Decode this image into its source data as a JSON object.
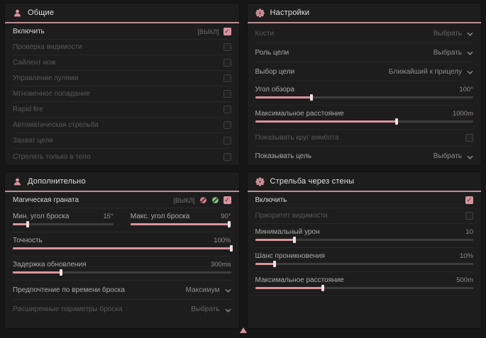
{
  "colors": {
    "accent": "#d8949e",
    "green": "#7fc47d",
    "panel": "#1d1d1d",
    "page": "#161616",
    "header_underline": "#bb8f96"
  },
  "general": {
    "title": "Общие",
    "rows": [
      {
        "label": "Включить",
        "hotkey": "[ВЫКЛ]",
        "checked": true
      },
      {
        "label": "Проверка видимости",
        "checked": false
      },
      {
        "label": "Сайлент нож",
        "checked": false
      },
      {
        "label": "Управление пулями",
        "checked": false
      },
      {
        "label": "Мгновенное попадание",
        "checked": false
      },
      {
        "label": "Rapid fire",
        "checked": false
      },
      {
        "label": "Автоматическая стрельба",
        "checked": false
      },
      {
        "label": "Захват цели",
        "checked": false
      },
      {
        "label": "Стрелять только в тело",
        "checked": false
      }
    ]
  },
  "settings": {
    "title": "Настройки",
    "bones": {
      "label": "Кости",
      "value": "Выбрать"
    },
    "target_role": {
      "label": "Роль цели",
      "value": "Выбрать"
    },
    "target_select": {
      "label": "Выбор цели",
      "value": "Ближайший к прицелу"
    },
    "fov": {
      "label": "Угол обзора",
      "value": "100°",
      "fill": 26
    },
    "max_distance": {
      "label": "Максимальное расстояние",
      "value": "1000m",
      "fill": 65
    },
    "show_circle": {
      "label": "Показывать круг аимбота",
      "checked": false
    },
    "show_target": {
      "label": "Показывать цель",
      "value": "Выбрать"
    }
  },
  "additional": {
    "title": "Дополнительно",
    "magic_grenade": {
      "label": "Магическая граната",
      "hotkey": "[ВЫКЛ]",
      "checked": true
    },
    "min_angle": {
      "label": "Мин. угол броска",
      "value": "15°",
      "fill": 15
    },
    "max_angle": {
      "label": "Макс. угол броска",
      "value": "90°",
      "fill": 98
    },
    "accuracy": {
      "label": "Точность",
      "value": "100%",
      "fill": 100
    },
    "update_delay": {
      "label": "Задержка обновления",
      "value": "300ms",
      "fill": 22
    },
    "throw_time": {
      "label": "Предпочтение по времени броска",
      "value": "Максимум"
    },
    "advanced": {
      "label": "Расширенные параметры броска",
      "value": "Выбрать"
    }
  },
  "walls": {
    "title": "Стрельба через стены",
    "enable": {
      "label": "Включить",
      "checked": true
    },
    "visibility_priority": {
      "label": "Приоритет видимости",
      "checked": false
    },
    "min_damage": {
      "label": "Минимальный урон",
      "value": "10",
      "fill": 18
    },
    "penetration_chance": {
      "label": "Шанс проникновения",
      "value": "10%",
      "fill": 9
    },
    "max_distance": {
      "label": "Максимальное расстояние",
      "value": "500m",
      "fill": 31
    }
  }
}
